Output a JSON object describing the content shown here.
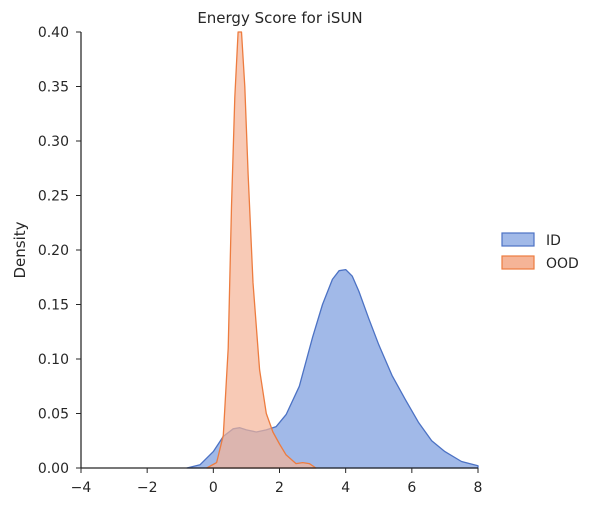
{
  "chart_data": {
    "type": "area",
    "title": "Energy Score for iSUN",
    "xlabel": "",
    "ylabel": "Density",
    "xlim": [
      -4,
      8
    ],
    "ylim": [
      0,
      0.4
    ],
    "x_ticks": [
      -4,
      -2,
      0,
      2,
      4,
      6,
      8
    ],
    "y_ticks": [
      0.0,
      0.05,
      0.1,
      0.15,
      0.2,
      0.25,
      0.3,
      0.35,
      0.4
    ],
    "x_tick_labels": [
      "−4",
      "−2",
      "0",
      "2",
      "4",
      "6",
      "8"
    ],
    "y_tick_labels": [
      "0.00",
      "0.05",
      "0.10",
      "0.15",
      "0.20",
      "0.25",
      "0.30",
      "0.35",
      "0.40"
    ],
    "grid": false,
    "legend_position": "right",
    "series": [
      {
        "name": "ID",
        "fill": "#a1b9e8",
        "stroke": "#4c72c4",
        "x": [
          -0.8,
          -0.4,
          0.0,
          0.3,
          0.6,
          0.8,
          1.0,
          1.3,
          1.6,
          1.9,
          2.2,
          2.6,
          3.0,
          3.3,
          3.6,
          3.8,
          4.0,
          4.2,
          4.4,
          4.7,
          5.0,
          5.4,
          5.8,
          6.2,
          6.6,
          7.0,
          7.5,
          8.0
        ],
        "y": [
          0.0,
          0.003,
          0.015,
          0.029,
          0.036,
          0.037,
          0.035,
          0.033,
          0.035,
          0.038,
          0.049,
          0.075,
          0.12,
          0.15,
          0.173,
          0.181,
          0.182,
          0.176,
          0.162,
          0.137,
          0.113,
          0.085,
          0.063,
          0.042,
          0.025,
          0.015,
          0.006,
          0.002
        ]
      },
      {
        "name": "OOD",
        "fill": "#f5b497",
        "stroke": "#ed7c3f",
        "x": [
          -0.2,
          0.1,
          0.3,
          0.45,
          0.55,
          0.65,
          0.75,
          0.85,
          0.95,
          1.05,
          1.2,
          1.4,
          1.6,
          1.8,
          2.0,
          2.2,
          2.5,
          2.7,
          2.9,
          3.1
        ],
        "y": [
          0.0,
          0.005,
          0.03,
          0.11,
          0.24,
          0.34,
          0.4,
          0.4,
          0.35,
          0.27,
          0.17,
          0.09,
          0.05,
          0.033,
          0.022,
          0.012,
          0.004,
          0.005,
          0.004,
          0.0
        ]
      }
    ]
  }
}
